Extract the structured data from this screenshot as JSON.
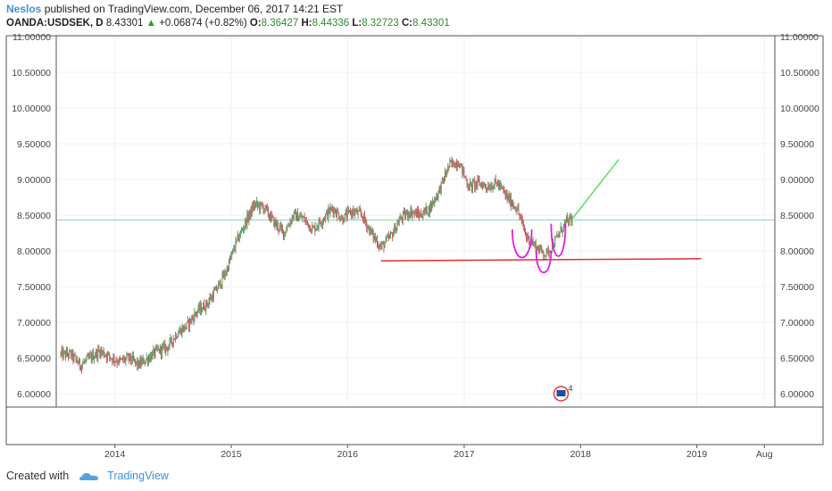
{
  "header": {
    "username": "Neslos",
    "published_text": "published on TradingView.com, December 06, 2017 14:21 EST"
  },
  "symbol_bar": {
    "symbol": "OANDA:USDSEK, D",
    "last": "8.43301",
    "change_arrow": "▲",
    "change": "+0.06874 (+0.82%)",
    "o_label": "O:",
    "o_value": "8.36427",
    "h_label": "H:",
    "h_value": "8.44336",
    "l_label": "L:",
    "l_value": "8.32723",
    "c_label": "C:",
    "c_value": "8.43301"
  },
  "footer": {
    "created_with": "Created with",
    "brand": "TradingView",
    "brand_icon": "tradingview-cloud-icon"
  },
  "colors": {
    "up": "#2ca02c",
    "candle_up": "#6a9a6a",
    "candle_down": "#c06060",
    "grid": "#eef0f3",
    "price_line": "#8fd0b0",
    "support_line": "#e03030",
    "target_line": "#33dd33",
    "pattern": "#e020e0",
    "event_badge": "#d83a3a"
  },
  "chart_data": {
    "type": "candlestick",
    "symbol": "OANDA:USDSEK",
    "interval": "D",
    "x_ticks": [
      "2014",
      "2015",
      "2016",
      "2017",
      "2018",
      "2019",
      "Aug"
    ],
    "y_ticks": [
      "11.00000",
      "10.50000",
      "10.00000",
      "9.50000",
      "9.00000",
      "8.50000",
      "8.00000",
      "7.50000",
      "7.00000",
      "6.50000",
      "6.00000"
    ],
    "x_range": [
      "2013-07",
      "2019-08"
    ],
    "ylim": [
      5.8,
      11.0
    ],
    "grid": true,
    "last_price": 8.43301,
    "price_path": [
      [
        "2013-07-15",
        6.55
      ],
      [
        "2013-08-15",
        6.55
      ],
      [
        "2013-09-15",
        6.4
      ],
      [
        "2013-10-15",
        6.5
      ],
      [
        "2013-11-15",
        6.6
      ],
      [
        "2013-12-15",
        6.52
      ],
      [
        "2014-01-15",
        6.45
      ],
      [
        "2014-02-15",
        6.5
      ],
      [
        "2014-03-15",
        6.4
      ],
      [
        "2014-04-15",
        6.5
      ],
      [
        "2014-05-15",
        6.6
      ],
      [
        "2014-06-15",
        6.65
      ],
      [
        "2014-07-15",
        6.85
      ],
      [
        "2014-08-15",
        6.95
      ],
      [
        "2014-09-15",
        7.15
      ],
      [
        "2014-10-15",
        7.25
      ],
      [
        "2014-11-15",
        7.45
      ],
      [
        "2014-12-15",
        7.7
      ],
      [
        "2015-01-15",
        8.1
      ],
      [
        "2015-02-15",
        8.4
      ],
      [
        "2015-03-15",
        8.65
      ],
      [
        "2015-04-15",
        8.6
      ],
      [
        "2015-05-15",
        8.4
      ],
      [
        "2015-06-15",
        8.25
      ],
      [
        "2015-07-15",
        8.5
      ],
      [
        "2015-08-15",
        8.45
      ],
      [
        "2015-09-15",
        8.3
      ],
      [
        "2015-10-15",
        8.45
      ],
      [
        "2015-11-15",
        8.6
      ],
      [
        "2015-12-15",
        8.45
      ],
      [
        "2016-01-15",
        8.55
      ],
      [
        "2016-02-15",
        8.5
      ],
      [
        "2016-03-15",
        8.25
      ],
      [
        "2016-04-15",
        8.05
      ],
      [
        "2016-05-15",
        8.2
      ],
      [
        "2016-06-15",
        8.45
      ],
      [
        "2016-07-15",
        8.55
      ],
      [
        "2016-08-15",
        8.5
      ],
      [
        "2016-09-15",
        8.6
      ],
      [
        "2016-10-15",
        8.85
      ],
      [
        "2016-11-15",
        9.2
      ],
      [
        "2016-12-15",
        9.25
      ],
      [
        "2017-01-15",
        8.9
      ],
      [
        "2017-02-15",
        8.95
      ],
      [
        "2017-03-15",
        8.9
      ],
      [
        "2017-04-15",
        8.95
      ],
      [
        "2017-05-15",
        8.75
      ],
      [
        "2017-06-15",
        8.6
      ],
      [
        "2017-07-15",
        8.2
      ],
      [
        "2017-08-15",
        8.05
      ],
      [
        "2017-09-15",
        7.95
      ],
      [
        "2017-10-15",
        8.15
      ],
      [
        "2017-11-15",
        8.4
      ],
      [
        "2017-12-06",
        8.43
      ]
    ],
    "drawings": {
      "support_line": {
        "from": [
          "2016-04-15",
          7.86
        ],
        "to": [
          "2019-01-15",
          7.89
        ]
      },
      "target_line": {
        "from": [
          "2017-12-01",
          8.42
        ],
        "to": [
          "2018-05-01",
          9.28
        ]
      },
      "pattern_loops": [
        {
          "x_from": "2017-06-01",
          "x_to": "2017-08-01",
          "y_from": 7.9,
          "y_to": 8.3
        },
        {
          "x_from": "2017-08-15",
          "x_to": "2017-10-01",
          "y_from": 7.72,
          "y_to": 8.0
        },
        {
          "x_from": "2017-10-01",
          "x_to": "2017-11-15",
          "y_from": 7.9,
          "y_to": 8.38
        }
      ]
    },
    "event_badge": {
      "date": "2017-11-01",
      "count": "4"
    }
  }
}
